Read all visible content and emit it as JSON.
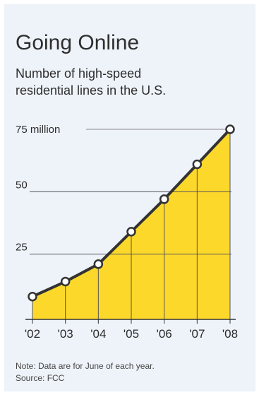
{
  "header": {
    "title": "Going Online",
    "subtitle_line1": "Number of high-speed",
    "subtitle_line2": "residential lines in the U.S."
  },
  "footer": {
    "note": "Note: Data are for June of each year.",
    "source": "Source: FCC"
  },
  "colors": {
    "fill": "#fcd82b",
    "line": "#333333",
    "background": "#eef3fa",
    "grid": "#555555"
  },
  "chart_data": {
    "type": "area",
    "title": "Going Online",
    "subtitle": "Number of high-speed residential lines in the U.S.",
    "categories": [
      "'02",
      "'03",
      "'04",
      "'05",
      "'06",
      "'07",
      "'08"
    ],
    "series": [
      {
        "values": [
          8,
          14,
          21,
          34,
          47,
          61,
          75
        ]
      }
    ],
    "y_ticks": [
      {
        "value": 25,
        "label": "25"
      },
      {
        "value": 50,
        "label": "50"
      },
      {
        "value": 75,
        "label": "75 million"
      }
    ],
    "ylim": [
      0,
      75
    ],
    "grid": true,
    "xlabel": "",
    "ylabel": ""
  }
}
